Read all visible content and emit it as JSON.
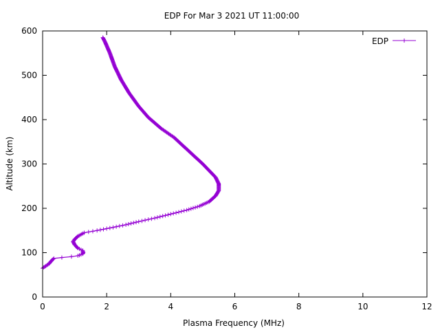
{
  "chart_data": {
    "type": "line",
    "title": "EDP For Mar 3 2021 UT 11:00:00",
    "xlabel": "Plasma Frequency (MHz)",
    "ylabel": "Altitude (km)",
    "xlim": [
      0,
      12
    ],
    "ylim": [
      0,
      600
    ],
    "xticks": [
      "0",
      "2",
      "4",
      "6",
      "8",
      "10",
      "12"
    ],
    "yticks": [
      "0",
      "100",
      "200",
      "300",
      "400",
      "500",
      "600"
    ],
    "grid": false,
    "legend_position": "top-right",
    "marker": "+",
    "series": [
      {
        "name": "EDP",
        "color": "#9400d3",
        "points": [
          [
            0.0,
            65
          ],
          [
            0.1,
            70
          ],
          [
            0.2,
            75
          ],
          [
            0.28,
            82
          ],
          [
            0.35,
            87
          ],
          [
            0.6,
            89
          ],
          [
            0.9,
            91
          ],
          [
            1.1,
            93
          ],
          [
            1.25,
            97
          ],
          [
            1.27,
            100
          ],
          [
            1.25,
            105
          ],
          [
            1.1,
            110
          ],
          [
            1.0,
            118
          ],
          [
            0.95,
            125
          ],
          [
            1.0,
            130
          ],
          [
            1.1,
            137
          ],
          [
            1.3,
            145
          ],
          [
            1.7,
            150
          ],
          [
            2.2,
            157
          ],
          [
            2.6,
            163
          ],
          [
            3.0,
            170
          ],
          [
            3.5,
            178
          ],
          [
            4.0,
            187
          ],
          [
            4.5,
            196
          ],
          [
            4.9,
            205
          ],
          [
            5.2,
            215
          ],
          [
            5.4,
            228
          ],
          [
            5.5,
            240
          ],
          [
            5.5,
            255
          ],
          [
            5.4,
            270
          ],
          [
            5.2,
            285
          ],
          [
            5.0,
            300
          ],
          [
            4.7,
            320
          ],
          [
            4.4,
            340
          ],
          [
            4.1,
            360
          ],
          [
            3.7,
            380
          ],
          [
            3.3,
            405
          ],
          [
            3.0,
            430
          ],
          [
            2.7,
            460
          ],
          [
            2.45,
            490
          ],
          [
            2.25,
            520
          ],
          [
            2.1,
            550
          ],
          [
            1.95,
            575
          ],
          [
            1.88,
            585
          ]
        ]
      }
    ]
  }
}
